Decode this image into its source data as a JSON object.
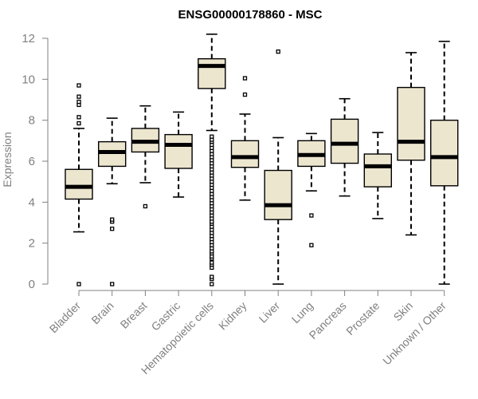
{
  "chart_data": {
    "type": "box",
    "title": "ENSG00000178860 - MSC",
    "xlabel": "",
    "ylabel": "Expression",
    "ylim": [
      0,
      12
    ],
    "yticks": [
      0,
      2,
      4,
      6,
      8,
      10,
      12
    ],
    "categories": [
      "Bladder",
      "Brain",
      "Breast",
      "Gastric",
      "Hematopoietic cells",
      "Kidney",
      "Liver",
      "Lung",
      "Pancreas",
      "Prostate",
      "Skin",
      "Unknown / Other"
    ],
    "boxes": [
      {
        "category": "Bladder",
        "whisker_low": 2.55,
        "q1": 4.15,
        "median": 4.75,
        "q3": 5.6,
        "whisker_high": 7.6,
        "outliers": [
          0.0,
          7.85,
          8.15,
          8.75,
          8.9,
          9.15,
          9.7
        ]
      },
      {
        "category": "Brain",
        "whisker_low": 4.9,
        "q1": 5.75,
        "median": 6.45,
        "q3": 6.95,
        "whisker_high": 8.1,
        "outliers": [
          0.0,
          2.7,
          3.05,
          3.15
        ]
      },
      {
        "category": "Breast",
        "whisker_low": 4.95,
        "q1": 6.45,
        "median": 6.95,
        "q3": 7.6,
        "whisker_high": 8.7,
        "outliers": [
          3.8
        ]
      },
      {
        "category": "Gastric",
        "whisker_low": 4.25,
        "q1": 5.65,
        "median": 6.8,
        "q3": 7.3,
        "whisker_high": 8.4,
        "outliers": []
      },
      {
        "category": "Hematopoietic cells",
        "whisker_low": 7.5,
        "q1": 9.55,
        "median": 10.65,
        "q3": 11.0,
        "whisker_high": 12.2,
        "outliers": [
          0.0,
          0.25,
          0.35,
          0.8,
          0.95,
          1.05,
          1.25,
          1.35,
          1.5,
          1.6,
          1.75,
          1.9,
          2.05,
          2.2,
          2.35,
          2.5,
          2.65,
          2.8,
          2.95,
          3.05,
          3.2,
          3.35,
          3.5,
          3.65,
          3.8,
          3.95,
          4.1,
          4.25,
          4.4,
          4.55,
          4.7,
          4.85,
          5.0,
          5.15,
          5.3,
          5.45,
          5.6,
          5.75,
          5.9,
          6.05,
          6.2,
          6.35,
          6.5,
          6.65,
          6.8,
          6.95,
          7.05,
          7.2
        ]
      },
      {
        "category": "Kidney",
        "whisker_low": 4.1,
        "q1": 5.7,
        "median": 6.2,
        "q3": 7.0,
        "whisker_high": 8.3,
        "outliers": [
          9.25,
          10.05
        ]
      },
      {
        "category": "Liver",
        "whisker_low": 0.0,
        "q1": 3.15,
        "median": 3.85,
        "q3": 5.55,
        "whisker_high": 7.15,
        "outliers": [
          11.35
        ]
      },
      {
        "category": "Lung",
        "whisker_low": 4.55,
        "q1": 5.75,
        "median": 6.3,
        "q3": 7.0,
        "whisker_high": 7.35,
        "outliers": [
          1.9,
          3.35
        ]
      },
      {
        "category": "Pancreas",
        "whisker_low": 4.3,
        "q1": 5.9,
        "median": 6.85,
        "q3": 8.05,
        "whisker_high": 9.05,
        "outliers": []
      },
      {
        "category": "Prostate",
        "whisker_low": 3.2,
        "q1": 4.75,
        "median": 5.75,
        "q3": 6.35,
        "whisker_high": 7.4,
        "outliers": []
      },
      {
        "category": "Skin",
        "whisker_low": 2.4,
        "q1": 6.05,
        "median": 6.95,
        "q3": 9.6,
        "whisker_high": 11.3,
        "outliers": []
      },
      {
        "category": "Unknown / Other",
        "whisker_low": 0.0,
        "q1": 4.8,
        "median": 6.2,
        "q3": 8.0,
        "whisker_high": 11.85,
        "outliers": []
      }
    ]
  }
}
